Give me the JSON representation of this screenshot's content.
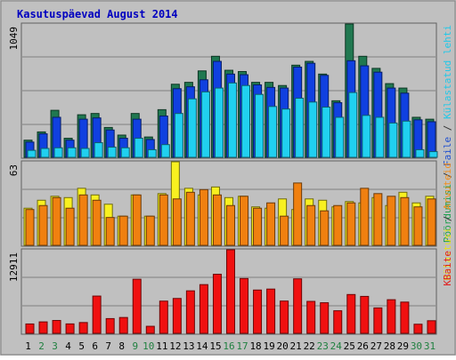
{
  "chart_data": {
    "type": "bar",
    "title": "Kasutuspäevad August 2014",
    "categories": [
      "1",
      "2",
      "3",
      "4",
      "5",
      "6",
      "7",
      "8",
      "9",
      "10",
      "11",
      "12",
      "13",
      "14",
      "15",
      "16",
      "17",
      "18",
      "19",
      "20",
      "21",
      "22",
      "23",
      "24",
      "25",
      "26",
      "27",
      "28",
      "29",
      "30",
      "31"
    ],
    "weekend_days": [
      "2",
      "3",
      "9",
      "10",
      "16",
      "17",
      "23",
      "24",
      "30",
      "31"
    ],
    "panels": [
      {
        "id": "top",
        "max_label": "1049",
        "ylim": [
          0,
          1049
        ],
        "right_labels": [
          {
            "text": "Pöördumisi",
            "color": "#20a050"
          },
          {
            "text": " / ",
            "color": "#333333"
          },
          {
            "text": "Faile",
            "color": "#2050d0"
          },
          {
            "text": " / ",
            "color": "#333333"
          },
          {
            "text": "Külastatud lehti",
            "color": "#20c8e8"
          }
        ],
        "series": [
          {
            "name": "Pöördumisi",
            "color": "#207850",
            "values": [
              135,
              200,
              370,
              150,
              335,
              345,
              235,
              175,
              345,
              160,
              375,
              575,
              590,
              680,
              795,
              685,
              675,
              590,
              590,
              565,
              725,
              755,
              655,
              445,
              1049,
              795,
              700,
              580,
              545,
              315,
              300
            ]
          },
          {
            "name": "Faile",
            "color": "#1040e0",
            "values": [
              120,
              185,
              315,
              135,
              300,
              310,
              215,
              150,
              300,
              140,
              325,
              540,
              555,
              610,
              755,
              655,
              650,
              570,
              550,
              545,
              710,
              740,
              645,
              430,
              760,
              720,
              670,
              545,
              505,
              295,
              280
            ]
          },
          {
            "name": "Külastatud lehti",
            "color": "#20d0f0",
            "values": [
              55,
              70,
              75,
              75,
              70,
              115,
              80,
              75,
              150,
              60,
              100,
              345,
              460,
              515,
              545,
              585,
              565,
              495,
              400,
              380,
              465,
              435,
              395,
              315,
              510,
              330,
              315,
              270,
              285,
              60,
              45
            ]
          }
        ]
      },
      {
        "id": "middle",
        "max_label": "63",
        "ylim": [
          0,
          63
        ],
        "right_labels": [
          {
            "text": "Külastusi",
            "color": "#e8e020"
          },
          {
            "text": " / ",
            "color": "#333333"
          },
          {
            "text": "Arvuteid",
            "color": "#f09020"
          }
        ],
        "series": [
          {
            "name": "Külastusi",
            "color": "#f8f020",
            "values": [
              28,
              34,
              37,
              36,
              43,
              38,
              31,
              22,
              38,
              22,
              39,
              63,
              43,
              38,
              44,
              36,
              37,
              29,
              28,
              35,
              27,
              35,
              34,
              29,
              33,
              32,
              36,
              30,
              40,
              32,
              37
            ]
          },
          {
            "name": "Arvuteid",
            "color": "#f08010",
            "values": [
              27,
              30,
              36,
              28,
              38,
              34,
              21,
              22,
              38,
              22,
              38,
              35,
              40,
              42,
              38,
              30,
              37,
              28,
              32,
              22,
              47,
              30,
              26,
              30,
              32,
              43,
              39,
              37,
              36,
              29,
              35
            ]
          }
        ]
      },
      {
        "id": "bottom",
        "max_label": "12911",
        "ylim": [
          0,
          12911
        ],
        "right_labels": [
          {
            "text": "KBaite",
            "color": "#e02020"
          }
        ],
        "series": [
          {
            "name": "KBaite",
            "color": "#f01010",
            "values": [
              1450,
              1770,
              1990,
              1460,
              1670,
              5760,
              2280,
              2450,
              8360,
              1090,
              4980,
              5390,
              6570,
              7530,
              9130,
              12911,
              8470,
              6690,
              6840,
              4990,
              8420,
              4940,
              4730,
              3490,
              6000,
              5710,
              3930,
              5200,
              4830,
              1410,
              1950
            ]
          }
        ]
      }
    ]
  }
}
